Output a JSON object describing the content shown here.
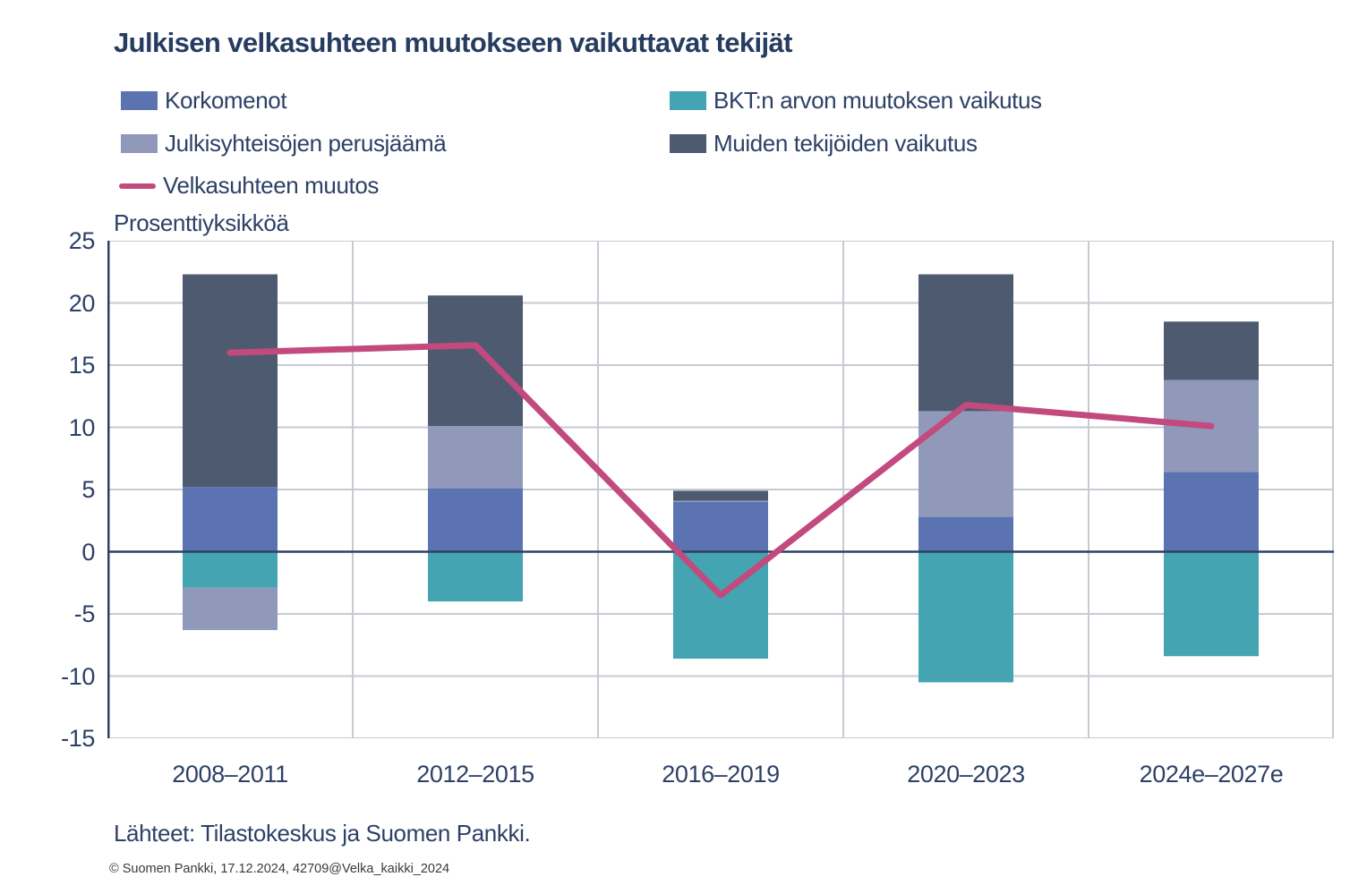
{
  "title": "Julkisen velkasuhteen muutokseen vaikuttavat tekijät",
  "y_axis_title": "Prosenttiyksikköä",
  "source": "Lähteet: Tilastokeskus ja Suomen Pankki.",
  "copyright": "© Suomen Pankki, 17.12.2024, 42709@Velka_kaikki_2024",
  "colors": {
    "korkomenot": "#5b73b1",
    "bkt": "#44a4b1",
    "perusjaama": "#9199bb",
    "muut": "#4e5a70",
    "line": "#c24a7e",
    "grid": "#c6cad3",
    "axis": "#2e4265",
    "text": "#2d4166",
    "title_text": "#263c60",
    "copyright_text": "#3a3a3a",
    "background": "#ffffff"
  },
  "chart_data": {
    "type": "bar",
    "stacked": true,
    "grid": true,
    "legend_position": "top-left-two-columns",
    "title": "Julkisen velkasuhteen muutokseen vaikuttavat tekijät",
    "xlabel": "",
    "ylabel": "Prosenttiyksikköä",
    "ylim": [
      -15,
      25
    ],
    "y_ticks": [
      25,
      20,
      15,
      10,
      5,
      0,
      -5,
      -10,
      -15
    ],
    "categories": [
      "2008–2011",
      "2012–2015",
      "2016–2019",
      "2020–2023",
      "2024e–2027e"
    ],
    "series": [
      {
        "key": "korkomenot",
        "name": "Korkomenot",
        "values": [
          5.2,
          5.1,
          4.0,
          2.8,
          6.4
        ]
      },
      {
        "key": "bkt",
        "name": "BKT:n arvon muutoksen vaikutus",
        "values": [
          -2.9,
          -4.0,
          -8.6,
          -10.5,
          -8.4
        ]
      },
      {
        "key": "perusjaama",
        "name": "Julkisyhteisöjen perusjäämä",
        "values": [
          -3.4,
          5.0,
          0.1,
          8.5,
          7.4
        ]
      },
      {
        "key": "muut",
        "name": "Muiden tekijöiden vaikutus",
        "values": [
          17.1,
          10.5,
          0.8,
          11.0,
          4.7
        ]
      }
    ],
    "stack_order_positive": [
      "korkomenot",
      "perusjaama",
      "muut"
    ],
    "stack_order_negative": [
      "bkt",
      "perusjaama"
    ],
    "line_series": {
      "key": "velkasuhteen_muutos",
      "name": "Velkasuhteen muutos",
      "values": [
        16.0,
        16.6,
        -3.5,
        11.8,
        10.1
      ]
    }
  }
}
